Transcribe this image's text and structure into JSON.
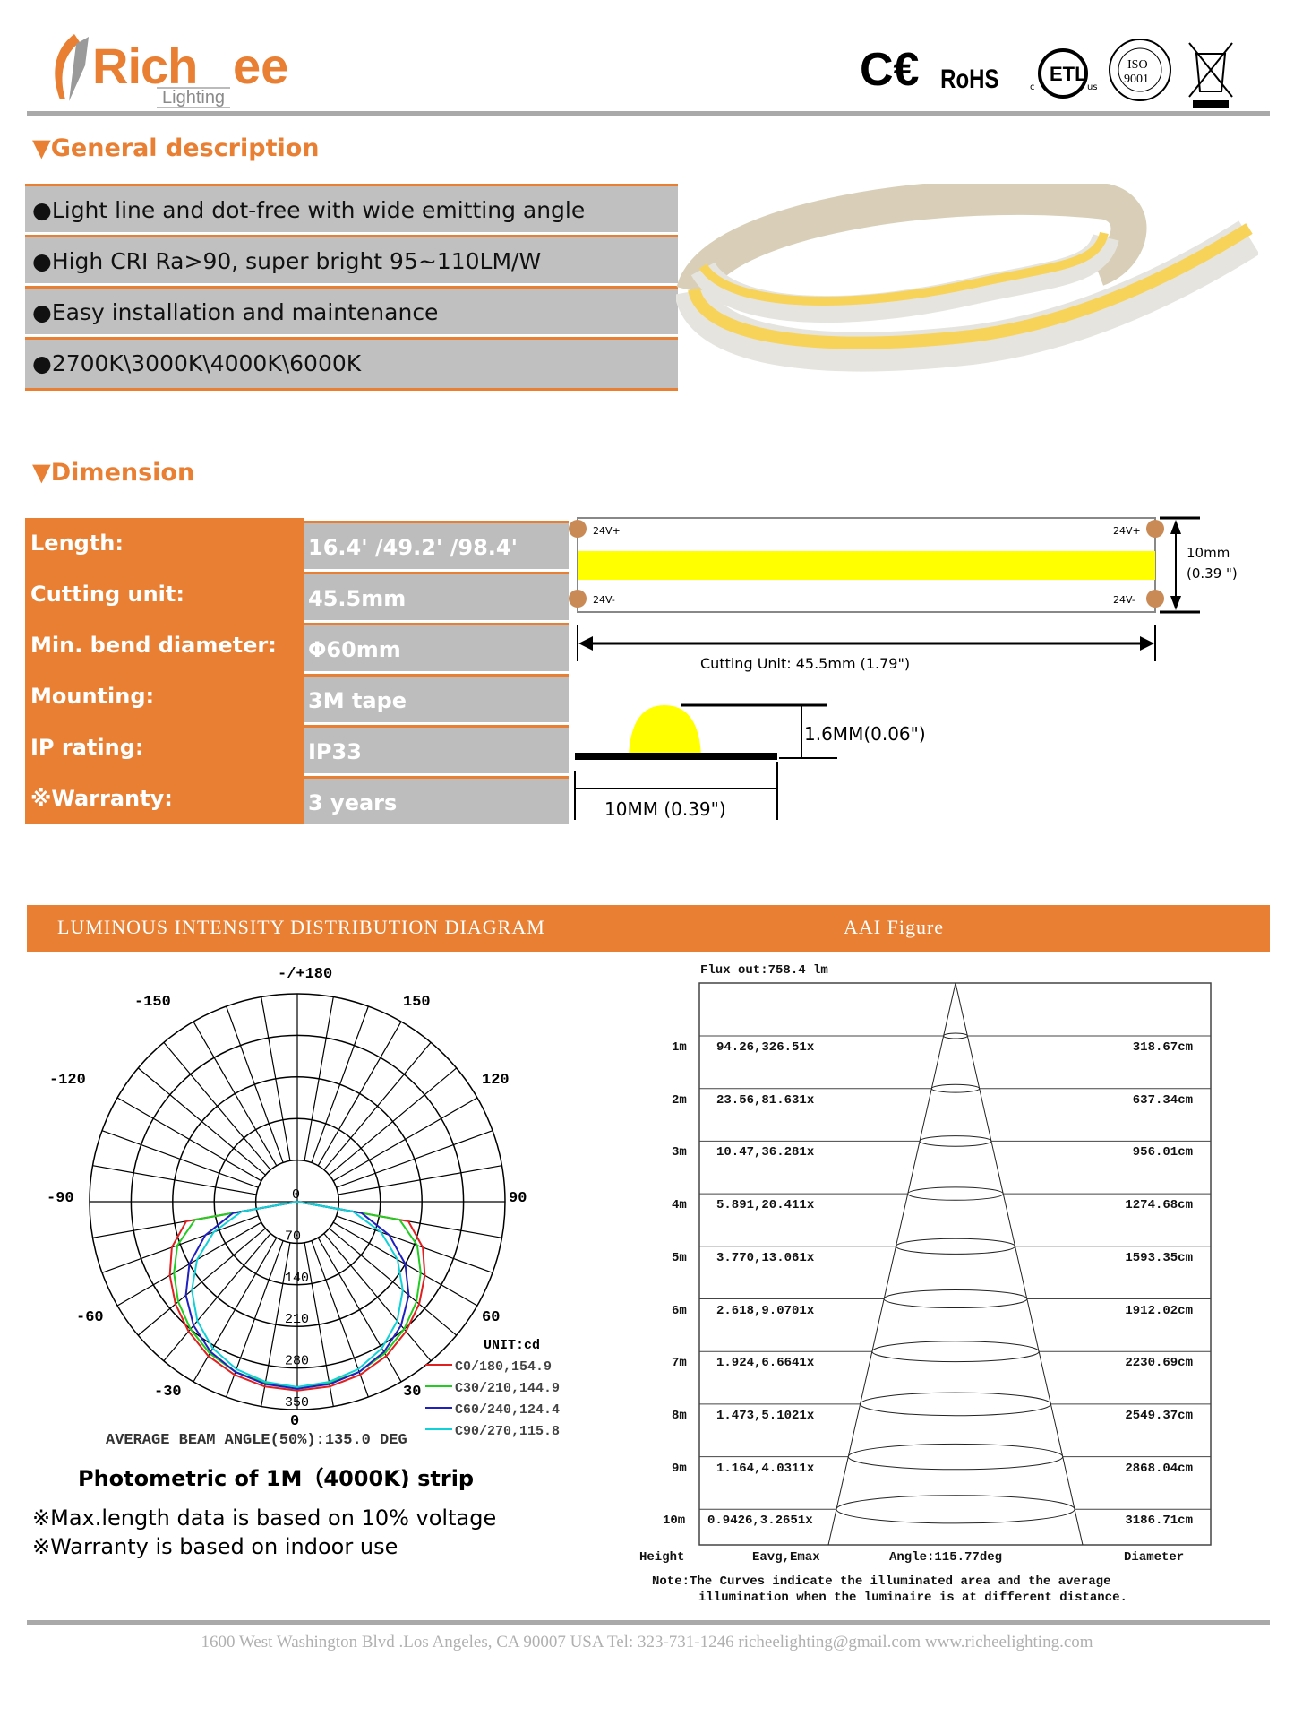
{
  "brand": {
    "name_part1": "Rich",
    "name_part2": "ee",
    "sub": "Lighting"
  },
  "certifications": [
    "CE",
    "RoHS",
    "ETL",
    "ISO 9001",
    "WEEE"
  ],
  "general": {
    "title": "General description",
    "items": [
      "●Light line and dot-free with wide emitting angle",
      "●High CRI Ra>90, super bright 95~110LM/W",
      "●Easy installation and maintenance",
      "●2700K\\3000K\\4000K\\6000K"
    ]
  },
  "dimension": {
    "title": "Dimension",
    "rows": [
      {
        "label": "Length:",
        "value": "16.4' /49.2' /98.4'"
      },
      {
        "label": "Cutting unit:",
        "value": "45.5mm"
      },
      {
        "label": "Min. bend diameter:",
        "value": "Φ60mm"
      },
      {
        "label": "Mounting:",
        "value": "3M tape"
      },
      {
        "label": "IP rating:",
        "value": "IP33"
      },
      {
        "label": "※Warranty:",
        "value": "3 years"
      }
    ],
    "drawing": {
      "pad_top": "24V+",
      "pad_bottom": "24V-",
      "width_mm": "10mm",
      "width_in": "(0.39 \")",
      "cutting": "Cutting Unit:  45.5mm (1.79\")",
      "height": "1.6MM(0.06\")",
      "base": "10MM (0.39\")"
    }
  },
  "colors": {
    "accent": "#e97f32",
    "row_grey": "#c0c0c0",
    "c0": "#e02020",
    "c30": "#22cc22",
    "c60": "#2020c0",
    "c90": "#10d0d8"
  },
  "luminous": {
    "header": "LUMINOUS  INTENSITY  DISTRIBUTION  DIAGRAM",
    "chart_data": {
      "type": "polar",
      "unit": "UNIT:cd",
      "angle_labels": [
        "-/+180",
        "-150",
        "150",
        "-120",
        "120",
        "-90",
        "90",
        "-60",
        "60",
        "-30",
        "30",
        "0"
      ],
      "radial_ticks": [
        0,
        70,
        140,
        210,
        280,
        350
      ],
      "angles_deg": [
        0,
        10,
        20,
        30,
        40,
        50,
        60,
        70,
        80,
        90
      ],
      "series": [
        {
          "name": "C0/180,154.9",
          "values": [
            318,
            316,
            310,
            300,
            285,
            268,
            248,
            225,
            190,
            0
          ]
        },
        {
          "name": "C30/210,144.9",
          "values": [
            312,
            310,
            305,
            295,
            280,
            262,
            240,
            215,
            175,
            0
          ]
        },
        {
          "name": "C60/240,124.4",
          "values": [
            315,
            312,
            305,
            292,
            272,
            245,
            210,
            165,
            110,
            0
          ]
        },
        {
          "name": "C90/270,115.8",
          "values": [
            312,
            308,
            300,
            285,
            262,
            232,
            195,
            150,
            95,
            0
          ]
        }
      ],
      "annotation": "AVERAGE BEAM ANGLE(50%):135.0 DEG"
    },
    "caption": "Photometric of 1M（4000K) strip",
    "notes": [
      "※Max.length data is based on 10% voltage",
      "※Warranty is based on indoor use"
    ]
  },
  "aai": {
    "header": "AAI Figure",
    "flux": "Flux out:758.4 lm",
    "rows": [
      {
        "h": "1m",
        "e": "94.26,326.51x",
        "d": "318.67cm"
      },
      {
        "h": "2m",
        "e": "23.56,81.631x",
        "d": "637.34cm"
      },
      {
        "h": "3m",
        "e": "10.47,36.281x",
        "d": "956.01cm"
      },
      {
        "h": "4m",
        "e": "5.891,20.411x",
        "d": "1274.68cm"
      },
      {
        "h": "5m",
        "e": "3.770,13.061x",
        "d": "1593.35cm"
      },
      {
        "h": "6m",
        "e": "2.618,9.0701x",
        "d": "1912.02cm"
      },
      {
        "h": "7m",
        "e": "1.924,6.6641x",
        "d": "2230.69cm"
      },
      {
        "h": "8m",
        "e": "1.473,5.1021x",
        "d": "2549.37cm"
      },
      {
        "h": "9m",
        "e": "1.164,4.0311x",
        "d": "2868.04cm"
      },
      {
        "h": "10m",
        "e": "0.9426,3.2651x",
        "d": "3186.71cm"
      }
    ],
    "col_height": "Height",
    "col_e": "Eavg,Emax",
    "col_angle": "Angle:115.77deg",
    "col_d": "Diameter",
    "note1": "Note:The Curves indicate the illuminated area and the average",
    "note2": "illumination when the luminaire is at different distance."
  },
  "footer": "1600 West Washington Blvd .Los Angeles, CA 90007 USA Tel: 323-731-1246 richeelighting@gmail.com www.richeelighting.com"
}
